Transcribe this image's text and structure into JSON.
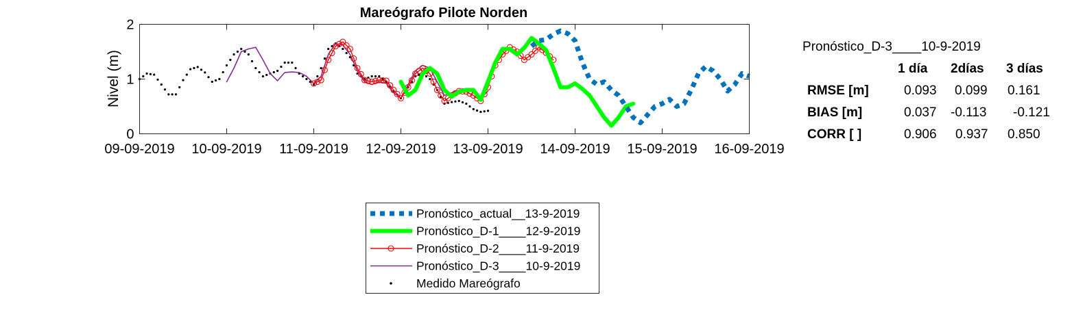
{
  "chart_data": {
    "type": "line",
    "title": "Mareógrafo Pilote Norden",
    "xlabel": "",
    "ylabel": "Nivel (m)",
    "xlim": [
      "2019-09-09T00:00",
      "2019-09-16T00:00"
    ],
    "ylim": [
      0,
      2
    ],
    "yticks": [
      "0",
      "1",
      "2"
    ],
    "xticks": [
      "09-09-2019",
      "10-09-2019",
      "11-09-2019",
      "12-09-2019",
      "13-09-2019",
      "14-09-2019",
      "15-09-2019",
      "16-09-2019"
    ],
    "grid": false,
    "legend_position": "below",
    "series": [
      {
        "name": "Pronóstico_actual__13-9-2019",
        "color": "#0072BD",
        "style": "dotted-thick",
        "points": [
          [
            "2019-09-13T12:00",
            1.6
          ],
          [
            "2019-09-13T14:00",
            1.7
          ],
          [
            "2019-09-13T16:00",
            1.72
          ],
          [
            "2019-09-13T18:00",
            1.82
          ],
          [
            "2019-09-13T20:00",
            1.88
          ],
          [
            "2019-09-13T22:00",
            1.83
          ],
          [
            "2019-09-14T00:00",
            1.7
          ],
          [
            "2019-09-14T02:00",
            1.3
          ],
          [
            "2019-09-14T04:00",
            1.0
          ],
          [
            "2019-09-14T06:00",
            0.9
          ],
          [
            "2019-09-14T08:00",
            0.95
          ],
          [
            "2019-09-14T10:00",
            0.8
          ],
          [
            "2019-09-14T12:00",
            0.7
          ],
          [
            "2019-09-14T14:00",
            0.5
          ],
          [
            "2019-09-14T16:00",
            0.3
          ],
          [
            "2019-09-14T18:00",
            0.2
          ],
          [
            "2019-09-14T20:00",
            0.35
          ],
          [
            "2019-09-14T22:00",
            0.5
          ],
          [
            "2019-09-15T00:00",
            0.55
          ],
          [
            "2019-09-15T02:00",
            0.63
          ],
          [
            "2019-09-15T04:00",
            0.5
          ],
          [
            "2019-09-15T06:00",
            0.55
          ],
          [
            "2019-09-15T08:00",
            0.8
          ],
          [
            "2019-09-15T10:00",
            1.1
          ],
          [
            "2019-09-15T12:00",
            1.23
          ],
          [
            "2019-09-15T14:00",
            1.15
          ],
          [
            "2019-09-15T16:00",
            1.0
          ],
          [
            "2019-09-15T18:00",
            0.78
          ],
          [
            "2019-09-15T20:00",
            0.9
          ],
          [
            "2019-09-15T22:00",
            1.1
          ],
          [
            "2019-09-16T00:00",
            1.05
          ]
        ]
      },
      {
        "name": "Pronóstico_D-1____12-9-2019",
        "color": "#00FF00",
        "style": "solid-thick",
        "points": [
          [
            "2019-09-12T00:00",
            0.95
          ],
          [
            "2019-09-12T02:00",
            0.7
          ],
          [
            "2019-09-12T04:00",
            0.8
          ],
          [
            "2019-09-12T06:00",
            1.1
          ],
          [
            "2019-09-12T08:00",
            1.2
          ],
          [
            "2019-09-12T10:00",
            1.1
          ],
          [
            "2019-09-12T12:00",
            0.8
          ],
          [
            "2019-09-12T14:00",
            0.68
          ],
          [
            "2019-09-12T16:00",
            0.77
          ],
          [
            "2019-09-12T18:00",
            0.8
          ],
          [
            "2019-09-12T20:00",
            0.8
          ],
          [
            "2019-09-12T22:00",
            0.62
          ],
          [
            "2019-09-13T00:00",
            0.95
          ],
          [
            "2019-09-13T02:00",
            1.3
          ],
          [
            "2019-09-13T04:00",
            1.55
          ],
          [
            "2019-09-13T06:00",
            1.55
          ],
          [
            "2019-09-13T08:00",
            1.45
          ],
          [
            "2019-09-13T10:00",
            1.57
          ],
          [
            "2019-09-13T12:00",
            1.75
          ],
          [
            "2019-09-13T14:00",
            1.65
          ],
          [
            "2019-09-13T16:00",
            1.53
          ],
          [
            "2019-09-13T18:00",
            1.2
          ],
          [
            "2019-09-13T20:00",
            0.85
          ],
          [
            "2019-09-13T22:00",
            0.85
          ],
          [
            "2019-09-14T00:00",
            0.92
          ],
          [
            "2019-09-14T02:00",
            0.82
          ],
          [
            "2019-09-14T04:00",
            0.7
          ],
          [
            "2019-09-14T06:00",
            0.5
          ],
          [
            "2019-09-14T08:00",
            0.3
          ],
          [
            "2019-09-14T10:00",
            0.15
          ],
          [
            "2019-09-14T12:00",
            0.3
          ],
          [
            "2019-09-14T14:00",
            0.5
          ],
          [
            "2019-09-14T16:00",
            0.55
          ]
        ]
      },
      {
        "name": "Pronóstico_D-2____11-9-2019",
        "color": "#FF0000",
        "style": "solid-circles",
        "points": [
          [
            "2019-09-11T00:00",
            0.92
          ],
          [
            "2019-09-11T02:00",
            0.98
          ],
          [
            "2019-09-11T04:00",
            1.35
          ],
          [
            "2019-09-11T06:00",
            1.6
          ],
          [
            "2019-09-11T08:00",
            1.68
          ],
          [
            "2019-09-11T10:00",
            1.55
          ],
          [
            "2019-09-11T12:00",
            1.2
          ],
          [
            "2019-09-11T14:00",
            0.98
          ],
          [
            "2019-09-11T16:00",
            0.95
          ],
          [
            "2019-09-11T18:00",
            0.98
          ],
          [
            "2019-09-11T20:00",
            0.97
          ],
          [
            "2019-09-11T22:00",
            0.8
          ],
          [
            "2019-09-12T00:00",
            0.65
          ],
          [
            "2019-09-12T02:00",
            0.85
          ],
          [
            "2019-09-12T04:00",
            1.1
          ],
          [
            "2019-09-12T06:00",
            1.2
          ],
          [
            "2019-09-12T08:00",
            1.1
          ],
          [
            "2019-09-12T10:00",
            0.8
          ],
          [
            "2019-09-12T12:00",
            0.6
          ],
          [
            "2019-09-12T14:00",
            0.7
          ],
          [
            "2019-09-12T16:00",
            0.78
          ],
          [
            "2019-09-12T18:00",
            0.77
          ],
          [
            "2019-09-12T20:00",
            0.7
          ],
          [
            "2019-09-12T22:00",
            0.6
          ],
          [
            "2019-09-13T00:00",
            0.85
          ],
          [
            "2019-09-13T02:00",
            1.25
          ],
          [
            "2019-09-13T04:00",
            1.45
          ],
          [
            "2019-09-13T06:00",
            1.58
          ],
          [
            "2019-09-13T08:00",
            1.5
          ],
          [
            "2019-09-13T10:00",
            1.35
          ],
          [
            "2019-09-13T12:00",
            1.45
          ],
          [
            "2019-09-13T14:00",
            1.58
          ],
          [
            "2019-09-13T16:00",
            1.48
          ],
          [
            "2019-09-13T18:00",
            1.35
          ]
        ]
      },
      {
        "name": "Pronóstico_D-3____10-9-2019",
        "color": "#7E2F8E",
        "style": "solid",
        "points": [
          [
            "2019-09-10T00:00",
            0.95
          ],
          [
            "2019-09-10T02:00",
            1.2
          ],
          [
            "2019-09-10T04:00",
            1.5
          ],
          [
            "2019-09-10T06:00",
            1.55
          ],
          [
            "2019-09-10T08:00",
            1.58
          ],
          [
            "2019-09-10T10:00",
            1.35
          ],
          [
            "2019-09-10T12:00",
            1.1
          ],
          [
            "2019-09-10T14:00",
            0.97
          ],
          [
            "2019-09-10T16:00",
            1.12
          ],
          [
            "2019-09-10T18:00",
            1.13
          ],
          [
            "2019-09-10T20:00",
            1.12
          ],
          [
            "2019-09-10T22:00",
            1.05
          ],
          [
            "2019-09-11T00:00",
            0.92
          ],
          [
            "2019-09-11T02:00",
            1.05
          ],
          [
            "2019-09-11T04:00",
            1.45
          ],
          [
            "2019-09-11T06:00",
            1.65
          ],
          [
            "2019-09-11T08:00",
            1.62
          ],
          [
            "2019-09-11T10:00",
            1.45
          ],
          [
            "2019-09-11T12:00",
            1.15
          ],
          [
            "2019-09-11T14:00",
            0.95
          ],
          [
            "2019-09-11T16:00",
            0.9
          ],
          [
            "2019-09-11T18:00",
            0.95
          ],
          [
            "2019-09-11T20:00",
            0.92
          ],
          [
            "2019-09-11T22:00",
            0.75
          ],
          [
            "2019-09-12T00:00",
            0.65
          ],
          [
            "2019-09-12T02:00",
            0.9
          ],
          [
            "2019-09-12T04:00",
            1.15
          ],
          [
            "2019-09-12T06:00",
            1.25
          ],
          [
            "2019-09-12T08:00",
            1.2
          ],
          [
            "2019-09-12T10:00",
            0.95
          ],
          [
            "2019-09-12T12:00",
            0.7
          ],
          [
            "2019-09-12T14:00",
            0.75
          ],
          [
            "2019-09-12T16:00",
            0.8
          ],
          [
            "2019-09-12T18:00",
            0.82
          ],
          [
            "2019-09-12T20:00",
            0.78
          ],
          [
            "2019-09-12T22:00",
            0.65
          ],
          [
            "2019-09-13T00:00",
            0.78
          ]
        ]
      },
      {
        "name": "Medido Mareógrafo",
        "color": "#000000",
        "style": "dots",
        "points": [
          [
            "2019-09-09T00:00",
            1.0
          ],
          [
            "2019-09-09T02:00",
            1.1
          ],
          [
            "2019-09-09T04:00",
            1.08
          ],
          [
            "2019-09-09T06:00",
            0.9
          ],
          [
            "2019-09-09T08:00",
            0.72
          ],
          [
            "2019-09-09T10:00",
            0.72
          ],
          [
            "2019-09-09T12:00",
            0.98
          ],
          [
            "2019-09-09T14:00",
            1.18
          ],
          [
            "2019-09-09T16:00",
            1.22
          ],
          [
            "2019-09-09T18:00",
            1.12
          ],
          [
            "2019-09-09T20:00",
            0.95
          ],
          [
            "2019-09-09T22:00",
            1.0
          ],
          [
            "2019-09-10T00:00",
            1.25
          ],
          [
            "2019-09-10T02:00",
            1.45
          ],
          [
            "2019-09-10T04:00",
            1.55
          ],
          [
            "2019-09-10T06:00",
            1.45
          ],
          [
            "2019-09-10T08:00",
            1.2
          ],
          [
            "2019-09-10T10:00",
            1.05
          ],
          [
            "2019-09-10T12:00",
            1.1
          ],
          [
            "2019-09-10T14:00",
            1.15
          ],
          [
            "2019-09-10T16:00",
            1.3
          ],
          [
            "2019-09-10T18:00",
            1.3
          ],
          [
            "2019-09-10T20:00",
            1.1
          ],
          [
            "2019-09-10T22:00",
            1.0
          ],
          [
            "2019-09-11T00:00",
            0.9
          ],
          [
            "2019-09-11T02:00",
            1.2
          ],
          [
            "2019-09-11T04:00",
            1.55
          ],
          [
            "2019-09-11T06:00",
            1.65
          ],
          [
            "2019-09-11T08:00",
            1.55
          ],
          [
            "2019-09-11T10:00",
            1.4
          ],
          [
            "2019-09-11T12:00",
            1.1
          ],
          [
            "2019-09-11T14:00",
            1.0
          ],
          [
            "2019-09-11T16:00",
            1.05
          ],
          [
            "2019-09-11T18:00",
            1.05
          ],
          [
            "2019-09-11T20:00",
            0.95
          ],
          [
            "2019-09-11T22:00",
            0.78
          ],
          [
            "2019-09-12T00:00",
            0.65
          ],
          [
            "2019-09-12T02:00",
            0.85
          ],
          [
            "2019-09-12T04:00",
            1.05
          ],
          [
            "2019-09-12T06:00",
            1.1
          ],
          [
            "2019-09-12T08:00",
            1.0
          ],
          [
            "2019-09-12T10:00",
            0.8
          ],
          [
            "2019-09-12T12:00",
            0.55
          ],
          [
            "2019-09-12T14:00",
            0.58
          ],
          [
            "2019-09-12T16:00",
            0.6
          ],
          [
            "2019-09-12T18:00",
            0.55
          ],
          [
            "2019-09-12T20:00",
            0.45
          ],
          [
            "2019-09-12T22:00",
            0.4
          ],
          [
            "2019-09-13T00:00",
            0.42
          ]
        ]
      }
    ]
  },
  "stats_table": {
    "title": "Pronóstico_D-3____10-9-2019",
    "columns": [
      "1 día",
      "2días",
      "3 días"
    ],
    "rows": [
      {
        "label": "RMSE [m]",
        "values": [
          "0.093",
          "0.099",
          "0.161"
        ]
      },
      {
        "label": "BIAS [m]",
        "values": [
          "0.037",
          "-0.113",
          "-0.121"
        ]
      },
      {
        "label": "CORR [  ]",
        "values": [
          "0.906",
          "0.937",
          "0.850"
        ]
      }
    ]
  }
}
